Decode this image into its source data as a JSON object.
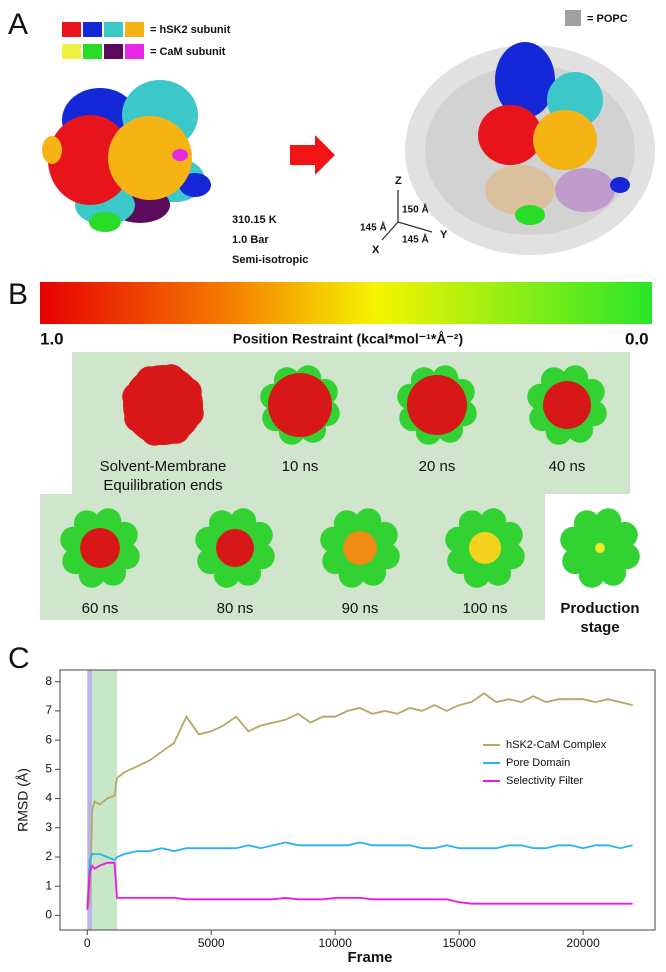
{
  "panel_a": {
    "label": "A",
    "legend": [
      {
        "text": "= hSK2 subunit",
        "colors": [
          "#e8141c",
          "#1428d8",
          "#3cc8c8",
          "#f5b414"
        ]
      },
      {
        "text": "= CaM subunit",
        "colors": [
          "#f0f040",
          "#28dc28",
          "#5a0a5a",
          "#e628e6"
        ]
      }
    ],
    "conditions": [
      "310.15 K",
      "1.0 Bar",
      "Semi-isotropic"
    ],
    "popc": "= POPC",
    "axes": {
      "z": "Z",
      "x": "X",
      "y": "Y",
      "z_len": "150 Å",
      "x_len": "145 Å",
      "y_len": "145 Å"
    }
  },
  "panel_b": {
    "label": "B",
    "scale_left": "1.0",
    "scale_right": "0.0",
    "scale_title": "Position Restraint (kcal*mol⁻¹*Å⁻²)",
    "snapshots": [
      {
        "lines": [
          "Solvent-Membrane",
          "Equilibration ends"
        ]
      },
      {
        "lines": [
          "10 ns"
        ]
      },
      {
        "lines": [
          "20 ns"
        ]
      },
      {
        "lines": [
          "40 ns"
        ]
      },
      {
        "lines": [
          "60 ns"
        ]
      },
      {
        "lines": [
          "80 ns"
        ]
      },
      {
        "lines": [
          "90 ns"
        ]
      },
      {
        "lines": [
          "100 ns"
        ]
      },
      {
        "lines": [
          "Production",
          "stage"
        ]
      }
    ]
  },
  "chart_data": {
    "type": "line",
    "label": "C",
    "x_label": "Frame",
    "y_label": "RMSD (Å)",
    "xlim": [
      -1100,
      22900
    ],
    "ylim": [
      -0.5,
      8.4
    ],
    "xticks": [
      0,
      5000,
      10000,
      15000,
      20000
    ],
    "yticks": [
      0,
      1,
      2,
      3,
      4,
      5,
      6,
      7,
      8
    ],
    "shaded_regions": [
      {
        "from": 0,
        "to": 200,
        "color": "#b4b4f0"
      },
      {
        "from": 200,
        "to": 1200,
        "color": "#c8e6c8"
      }
    ],
    "x": [
      0,
      100,
      200,
      300,
      500,
      800,
      1100,
      1200,
      1500,
      2000,
      2500,
      3000,
      3500,
      4000,
      4500,
      5000,
      5500,
      6000,
      6500,
      7000,
      7500,
      8000,
      8500,
      9000,
      9500,
      10000,
      10500,
      11000,
      11500,
      12000,
      12500,
      13000,
      13500,
      14000,
      14500,
      15000,
      15500,
      16000,
      16500,
      17000,
      17500,
      18000,
      18500,
      19000,
      19500,
      20000,
      20500,
      21000,
      21500,
      22000
    ],
    "series": [
      {
        "name": "hSK2-CaM Complex",
        "color": "#b4a864",
        "values": [
          0.2,
          0.5,
          3.6,
          3.9,
          3.8,
          4.0,
          4.1,
          4.7,
          4.9,
          5.1,
          5.3,
          5.6,
          5.9,
          6.8,
          6.2,
          6.3,
          6.5,
          6.8,
          6.3,
          6.5,
          6.6,
          6.7,
          6.9,
          6.6,
          6.8,
          6.8,
          7.0,
          7.1,
          6.9,
          7.0,
          6.9,
          7.1,
          7.0,
          7.2,
          7.0,
          7.2,
          7.3,
          7.6,
          7.3,
          7.4,
          7.3,
          7.5,
          7.3,
          7.4,
          7.4,
          7.4,
          7.3,
          7.4,
          7.3,
          7.2
        ]
      },
      {
        "name": "Pore Domain",
        "color": "#28b4f0",
        "values": [
          0.2,
          1.9,
          2.1,
          2.1,
          2.1,
          2.0,
          1.9,
          2.0,
          2.1,
          2.2,
          2.2,
          2.3,
          2.2,
          2.3,
          2.3,
          2.3,
          2.3,
          2.3,
          2.4,
          2.3,
          2.4,
          2.5,
          2.4,
          2.4,
          2.4,
          2.4,
          2.4,
          2.5,
          2.4,
          2.4,
          2.4,
          2.4,
          2.3,
          2.3,
          2.4,
          2.3,
          2.3,
          2.3,
          2.3,
          2.4,
          2.4,
          2.3,
          2.3,
          2.4,
          2.4,
          2.3,
          2.4,
          2.4,
          2.3,
          2.4
        ]
      },
      {
        "name": "Selectivity Filter",
        "color": "#f014e6",
        "values": [
          0.2,
          1.5,
          1.7,
          1.6,
          1.7,
          1.8,
          1.8,
          0.6,
          0.6,
          0.6,
          0.6,
          0.6,
          0.6,
          0.55,
          0.55,
          0.55,
          0.55,
          0.55,
          0.55,
          0.55,
          0.55,
          0.6,
          0.55,
          0.55,
          0.55,
          0.6,
          0.6,
          0.6,
          0.55,
          0.55,
          0.55,
          0.55,
          0.55,
          0.55,
          0.55,
          0.45,
          0.4,
          0.4,
          0.4,
          0.4,
          0.4,
          0.4,
          0.4,
          0.4,
          0.4,
          0.4,
          0.4,
          0.4,
          0.4,
          0.4
        ]
      }
    ]
  }
}
